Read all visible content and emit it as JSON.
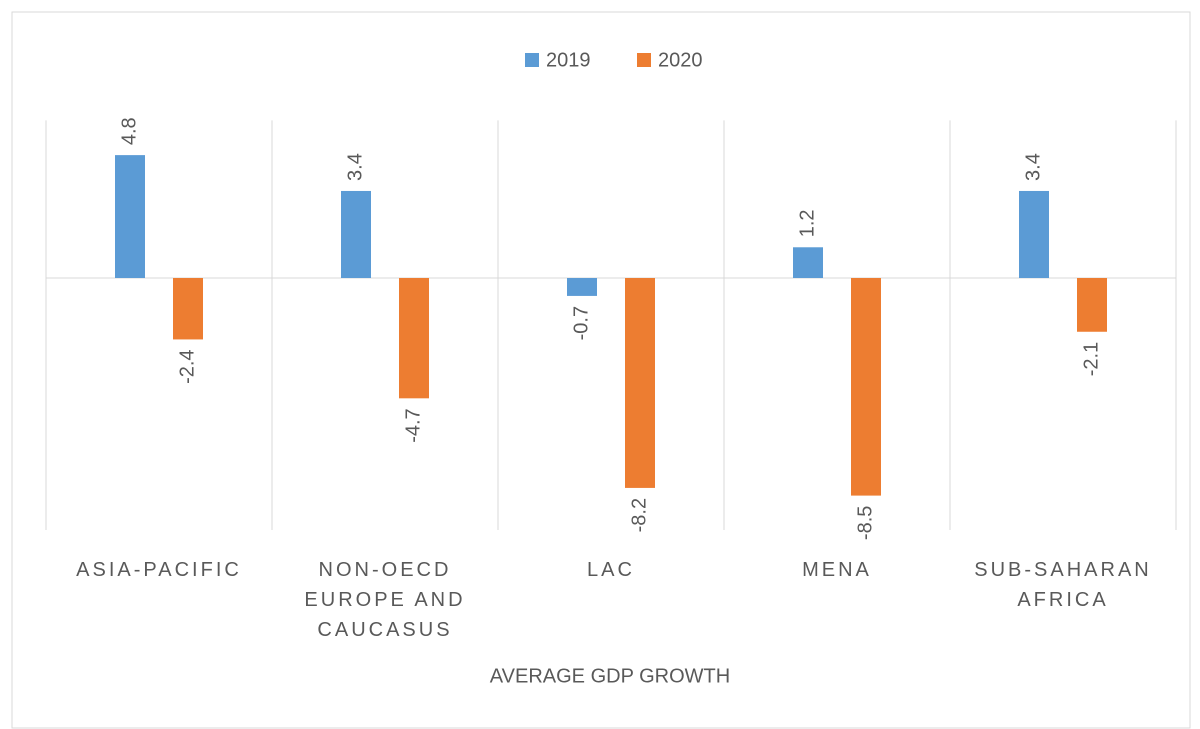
{
  "chart_data": {
    "type": "bar",
    "title": "AVERAGE GDP GROWTH",
    "categories": [
      "ASIA-PACIFIC",
      "NON-OECD EUROPE AND CAUCASUS",
      "LAC",
      "MENA",
      "SUB-SAHARAN AFRICA"
    ],
    "series": [
      {
        "name": "2019",
        "color": "#5b9bd5",
        "values": [
          4.8,
          3.4,
          -0.7,
          1.2,
          3.4
        ]
      },
      {
        "name": "2020",
        "color": "#ed7d31",
        "values": [
          -2.4,
          -4.7,
          -8.2,
          -8.5,
          -2.1
        ]
      }
    ],
    "ylim": [
      -10,
      6
    ],
    "legend": "top"
  }
}
